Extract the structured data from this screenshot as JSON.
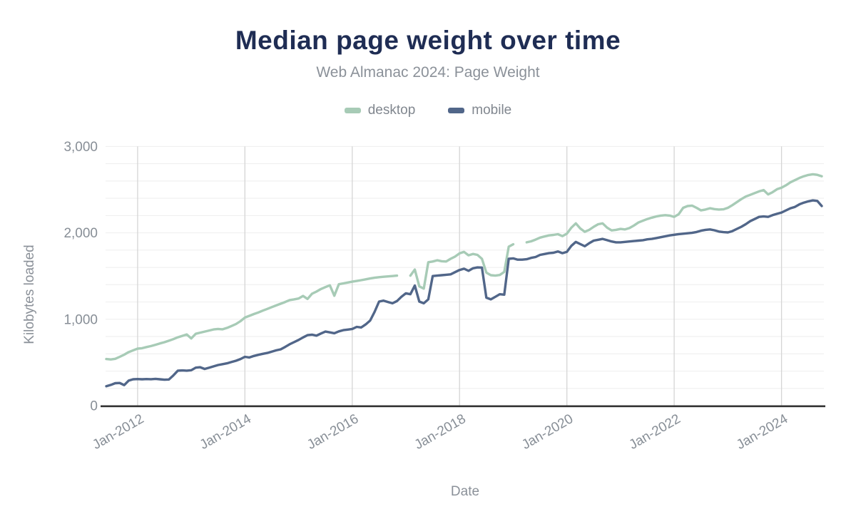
{
  "header": {
    "title": "Median page weight over time",
    "subtitle": "Web Almanac 2024: Page Weight"
  },
  "chart_data": {
    "type": "line",
    "title": "Median page weight over time",
    "subtitle": "Web Almanac 2024: Page Weight",
    "xlabel": "Date",
    "ylabel": "Kilobytes loaded",
    "legend_position": "top",
    "grid": true,
    "ylim": [
      0,
      3000
    ],
    "y_grid_step": 200,
    "y_ticks": [
      0,
      1000,
      2000,
      3000
    ],
    "y_tick_labels": [
      "0",
      "1,000",
      "2,000",
      "3,000"
    ],
    "x_start": "2011-06",
    "x_end": "2024-10",
    "x_unit": "month",
    "x_ticks": [
      {
        "label": "Jan-2012",
        "index": 7
      },
      {
        "label": "Jan-2014",
        "index": 31
      },
      {
        "label": "Jan-2016",
        "index": 55
      },
      {
        "label": "Jan-2018",
        "index": 79
      },
      {
        "label": "Jan-2020",
        "index": 103
      },
      {
        "label": "Jan-2022",
        "index": 127
      },
      {
        "label": "Jan-2024",
        "index": 151
      }
    ],
    "colors": {
      "desktop": "#a7cbb6",
      "mobile": "#516689",
      "title": "#1f2d54",
      "axis_text": "#8b9199",
      "minor_grid": "#eeeeee",
      "year_grid": "#d5d5d5",
      "axis_line": "#333333"
    },
    "series": [
      {
        "name": "desktop",
        "color": "#a7cbb6",
        "values": [
          540,
          535,
          542,
          565,
          590,
          620,
          640,
          660,
          665,
          678,
          690,
          705,
          720,
          734,
          752,
          770,
          791,
          808,
          824,
          778,
          832,
          845,
          857,
          870,
          882,
          888,
          884,
          900,
          922,
          945,
          978,
          1020,
          1040,
          1060,
          1078,
          1100,
          1120,
          1140,
          1160,
          1180,
          1200,
          1222,
          1230,
          1240,
          1270,
          1235,
          1295,
          1320,
          1350,
          1372,
          1393,
          1272,
          1405,
          1415,
          1425,
          1435,
          1443,
          1452,
          1462,
          1472,
          1480,
          1487,
          1492,
          1496,
          1500,
          1505,
          null,
          null,
          1505,
          1575,
          1380,
          1355,
          1660,
          1668,
          1682,
          1672,
          1668,
          1700,
          1725,
          1762,
          1780,
          1740,
          1756,
          1745,
          1700,
          1540,
          1510,
          1505,
          1512,
          1548,
          1840,
          1868,
          null,
          null,
          1890,
          1902,
          1922,
          1945,
          1958,
          1970,
          1976,
          1984,
          1962,
          1990,
          2060,
          2110,
          2050,
          2012,
          2035,
          2070,
          2100,
          2110,
          2060,
          2028,
          2035,
          2045,
          2040,
          2055,
          2085,
          2120,
          2140,
          2160,
          2176,
          2190,
          2200,
          2205,
          2200,
          2185,
          2215,
          2290,
          2310,
          2315,
          2290,
          2260,
          2270,
          2285,
          2275,
          2270,
          2272,
          2290,
          2320,
          2355,
          2390,
          2420,
          2440,
          2460,
          2480,
          2495,
          2445,
          2470,
          2505,
          2522,
          2550,
          2585,
          2610,
          2635,
          2655,
          2670,
          2678,
          2672,
          2655
        ]
      },
      {
        "name": "mobile",
        "color": "#516689",
        "values": [
          225,
          240,
          260,
          262,
          238,
          290,
          305,
          308,
          305,
          308,
          306,
          310,
          305,
          300,
          303,
          350,
          405,
          408,
          405,
          410,
          440,
          445,
          425,
          440,
          455,
          470,
          480,
          490,
          505,
          520,
          540,
          565,
          558,
          575,
          588,
          600,
          610,
          625,
          640,
          652,
          680,
          710,
          735,
          761,
          790,
          816,
          822,
          810,
          835,
          857,
          848,
          838,
          860,
          874,
          880,
          888,
          912,
          905,
          940,
          985,
          1085,
          1205,
          1215,
          1200,
          1185,
          1210,
          1260,
          1300,
          1290,
          1390,
          1205,
          1185,
          1230,
          1500,
          1505,
          1510,
          1515,
          1520,
          1545,
          1570,
          1585,
          1560,
          1590,
          1600,
          1598,
          1250,
          1230,
          1260,
          1290,
          1285,
          1700,
          1705,
          1690,
          1690,
          1695,
          1710,
          1720,
          1745,
          1755,
          1765,
          1770,
          1785,
          1765,
          1780,
          1850,
          1895,
          1870,
          1845,
          1880,
          1910,
          1920,
          1930,
          1915,
          1900,
          1890,
          1890,
          1895,
          1900,
          1905,
          1910,
          1915,
          1925,
          1930,
          1940,
          1950,
          1960,
          1970,
          1978,
          1985,
          1990,
          1995,
          2000,
          2010,
          2025,
          2035,
          2040,
          2030,
          2015,
          2008,
          2005,
          2020,
          2045,
          2070,
          2100,
          2135,
          2160,
          2185,
          2190,
          2185,
          2205,
          2220,
          2235,
          2260,
          2285,
          2300,
          2330,
          2350,
          2365,
          2375,
          2370,
          2310
        ]
      }
    ]
  }
}
